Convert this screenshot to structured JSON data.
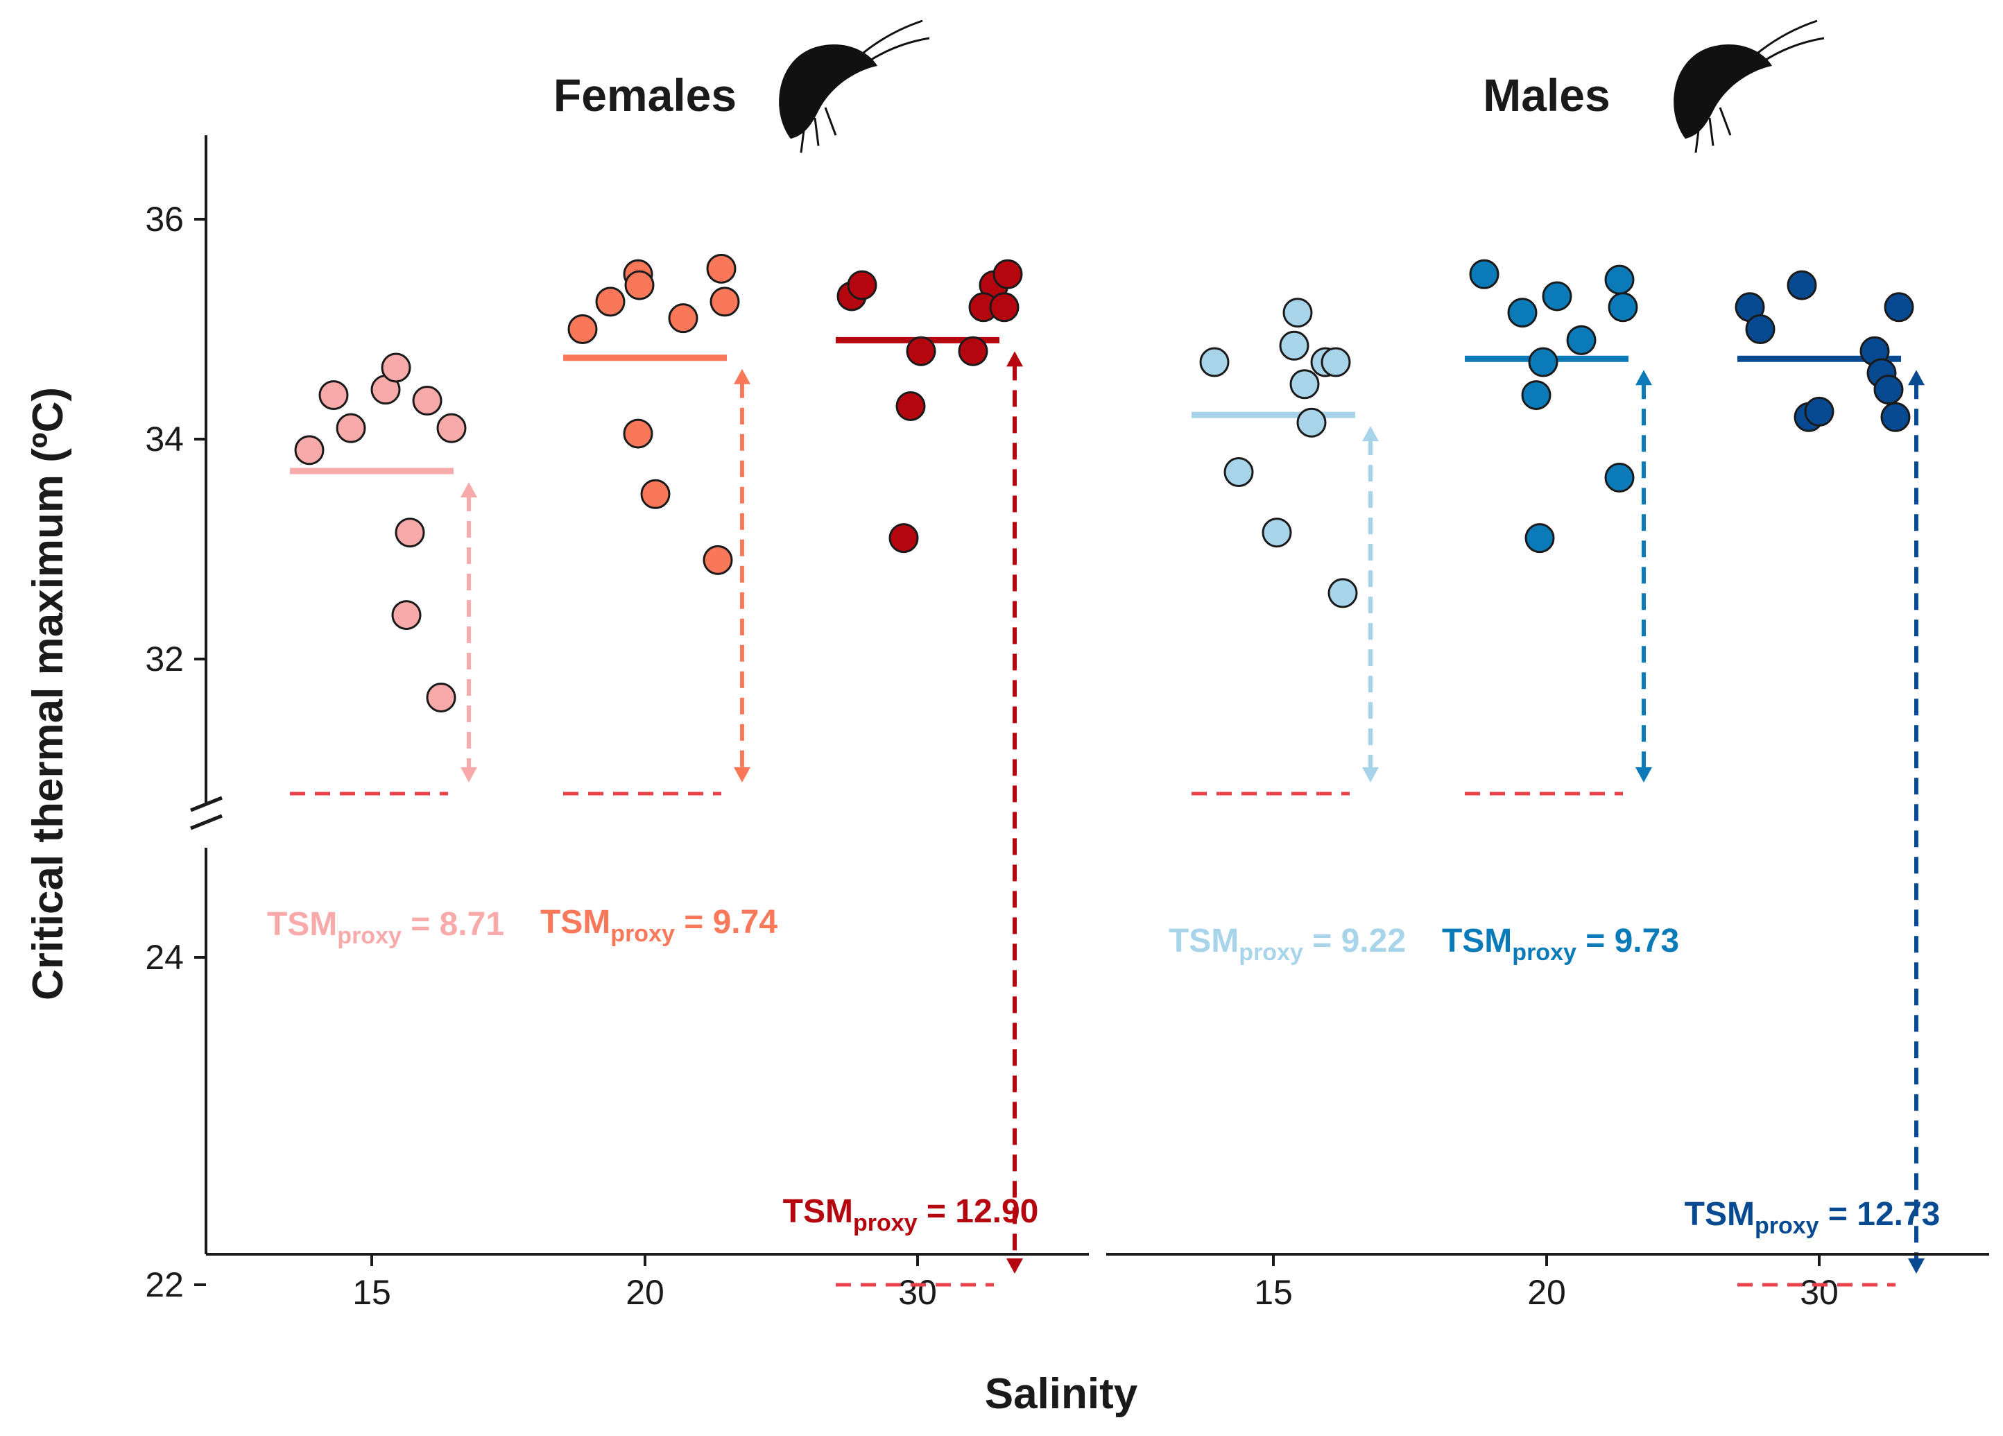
{
  "chart_data": {
    "type": "scatter",
    "ylabel": "Critical thermal maximum (ºC)",
    "xlabel": "Salinity",
    "y_ticks": [
      "36",
      "34",
      "32",
      "24",
      "22"
    ],
    "axis_break": true,
    "panels": [
      {
        "title": "Females",
        "icon": "amphipod-icon",
        "categories": [
          "15",
          "20",
          "30"
        ],
        "groups": [
          {
            "salinity": "15",
            "color": "#f8aaaa",
            "mean": 33.71,
            "acclimation_temp": 25.0,
            "tsm_label": "TSM",
            "tsm_sub": "proxy",
            "tsm_value": "= 8.71",
            "points": [
              33.9,
              34.4,
              34.45,
              34.65,
              34.35,
              34.1,
              34.1,
              33.15,
              32.4,
              31.65
            ]
          },
          {
            "salinity": "20",
            "color": "#f9785a",
            "mean": 34.74,
            "acclimation_temp": 25.0,
            "tsm_label": "TSM",
            "tsm_sub": "proxy",
            "tsm_value": "= 9.74",
            "points": [
              35.0,
              35.25,
              35.5,
              35.4,
              35.1,
              35.55,
              35.25,
              34.05,
              33.5,
              32.9
            ]
          },
          {
            "salinity": "30",
            "color": "#b5060f",
            "mean": 34.9,
            "acclimation_temp": 22.0,
            "tsm_label": "TSM",
            "tsm_sub": "proxy",
            "tsm_value": "= 12.90",
            "points": [
              35.3,
              35.4,
              34.8,
              34.3,
              33.1,
              34.8,
              35.4,
              35.5,
              35.2,
              35.2
            ]
          }
        ]
      },
      {
        "title": "Males",
        "icon": "amphipod-icon",
        "categories": [
          "15",
          "20",
          "30"
        ],
        "groups": [
          {
            "salinity": "15",
            "color": "#a8d4ea",
            "mean": 34.22,
            "acclimation_temp": 25.0,
            "tsm_label": "TSM",
            "tsm_sub": "proxy",
            "tsm_value": "= 9.22",
            "points": [
              34.7,
              33.7,
              33.15,
              35.15,
              34.85,
              34.5,
              34.7,
              34.7,
              34.15,
              32.6
            ]
          },
          {
            "salinity": "20",
            "color": "#0a7bb8",
            "mean": 34.73,
            "acclimation_temp": 25.0,
            "tsm_label": "TSM",
            "tsm_sub": "proxy",
            "tsm_value": "= 9.73",
            "points": [
              35.5,
              35.15,
              35.3,
              34.7,
              34.4,
              34.9,
              33.1,
              35.45,
              35.2,
              33.65
            ]
          },
          {
            "salinity": "30",
            "color": "#084a92",
            "mean": 34.73,
            "acclimation_temp": 22.0,
            "tsm_label": "TSM",
            "tsm_sub": "proxy",
            "tsm_value": "= 12.73",
            "points": [
              35.2,
              35.0,
              35.4,
              34.2,
              34.25,
              34.8,
              34.6,
              34.45,
              34.2,
              35.2
            ]
          }
        ]
      }
    ]
  }
}
